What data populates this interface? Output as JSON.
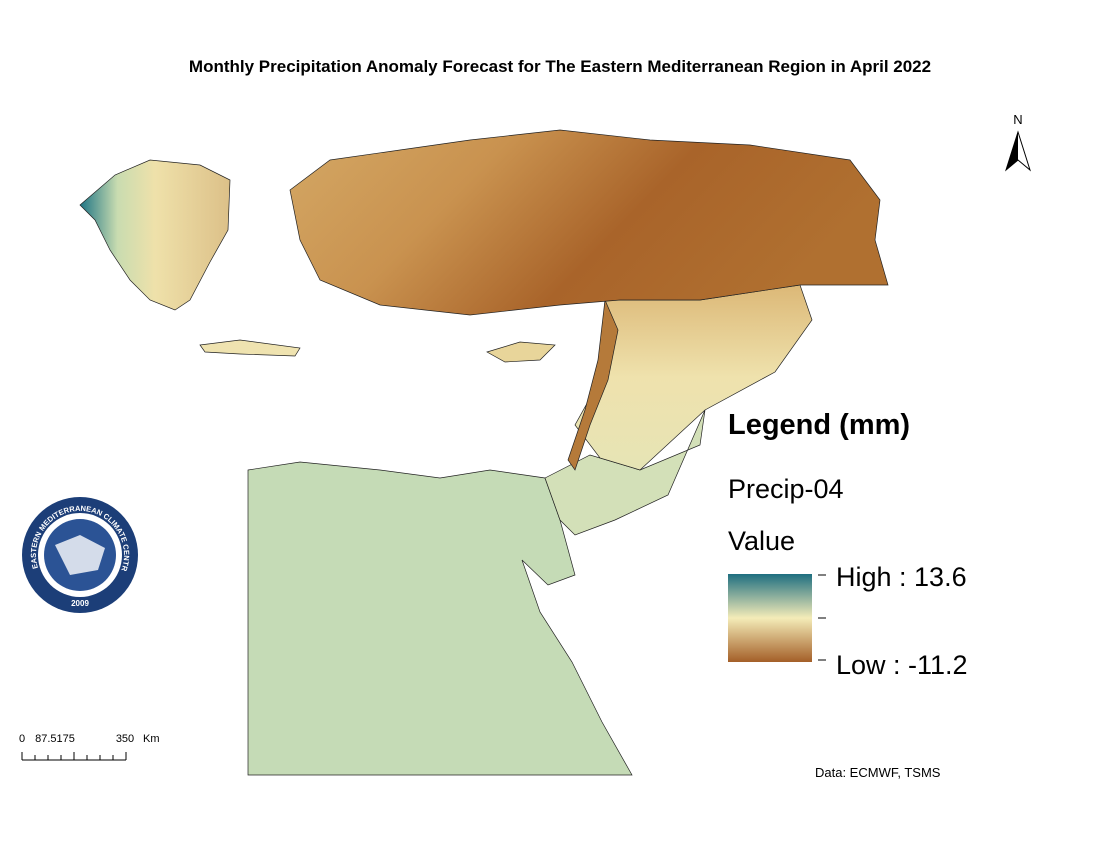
{
  "title": "Monthly Precipitation Anomaly Forecast for The Eastern Mediterranean Region in April 2022",
  "north_arrow": {
    "label": "N"
  },
  "legend": {
    "title": "Legend (mm)",
    "layer": "Precip-04",
    "field": "Value",
    "high": "High : 13.6",
    "low": "Low : -11.2"
  },
  "scale_bar": {
    "labels": [
      "0",
      "87.5175",
      "350"
    ],
    "unit": "Km"
  },
  "logo": {
    "text": "EASTERN MEDITERRANEAN CLIMATE CENTRE",
    "year": "2009"
  },
  "source": "Data: ECMWF, TSMS"
}
